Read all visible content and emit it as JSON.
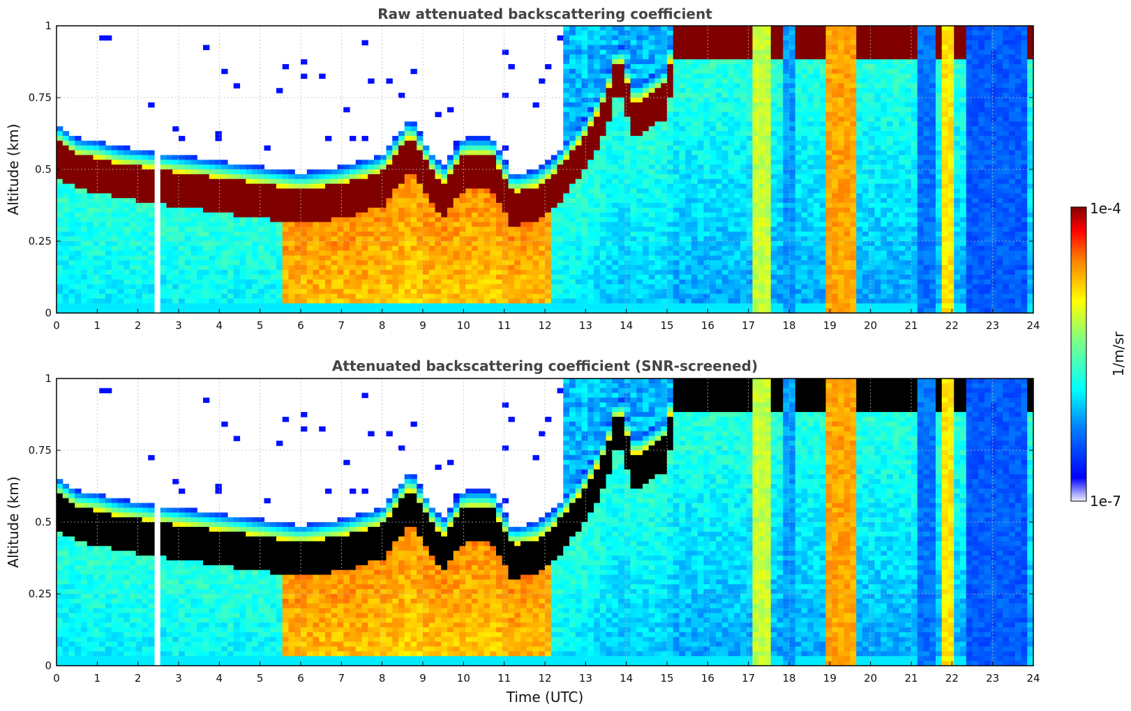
{
  "chart_data": [
    {
      "type": "heatmap",
      "title": "Raw attenuated backscattering coefficient",
      "xlabel": "",
      "ylabel": "Altitude (km)",
      "xlim": [
        0,
        24
      ],
      "ylim": [
        0,
        1
      ],
      "x_ticks": [
        "0",
        "1",
        "2",
        "3",
        "4",
        "5",
        "6",
        "7",
        "8",
        "9",
        "10",
        "11",
        "12",
        "13",
        "14",
        "15",
        "16",
        "17",
        "18",
        "19",
        "20",
        "21",
        "22",
        "23",
        "24"
      ],
      "y_ticks": [
        "0",
        "0.25",
        "0.5",
        "0.75",
        "1"
      ],
      "grid": true,
      "screened": false
    },
    {
      "type": "heatmap",
      "title": "Attenuated backscattering coefficient (SNR-screened)",
      "xlabel": "Time (UTC)",
      "ylabel": "Altitude (km)",
      "xlim": [
        0,
        24
      ],
      "ylim": [
        0,
        1
      ],
      "x_ticks": [
        "0",
        "1",
        "2",
        "3",
        "4",
        "5",
        "6",
        "7",
        "8",
        "9",
        "10",
        "11",
        "12",
        "13",
        "14",
        "15",
        "16",
        "17",
        "18",
        "19",
        "20",
        "21",
        "22",
        "23",
        "24"
      ],
      "y_ticks": [
        "0",
        "0.25",
        "0.5",
        "0.75",
        "1"
      ],
      "grid": true,
      "screened": true
    }
  ],
  "colorbar": {
    "max_label": "1e-4",
    "min_label": "1e-7",
    "unit": "1/m/sr",
    "colormap": "jet",
    "over_color_screened": "#000000"
  },
  "profile": {
    "pbl_top_km": [
      [
        0,
        0.6
      ],
      [
        0.5,
        0.55
      ],
      [
        1,
        0.54
      ],
      [
        1.5,
        0.52
      ],
      [
        2,
        0.51
      ],
      [
        2.5,
        0.5
      ],
      [
        3,
        0.49
      ],
      [
        4,
        0.47
      ],
      [
        5,
        0.45
      ],
      [
        6,
        0.43
      ],
      [
        7,
        0.45
      ],
      [
        8,
        0.49
      ],
      [
        8.7,
        0.62
      ],
      [
        9.2,
        0.5
      ],
      [
        9.5,
        0.45
      ],
      [
        10,
        0.55
      ],
      [
        10.7,
        0.55
      ],
      [
        11.2,
        0.42
      ],
      [
        11.8,
        0.44
      ],
      [
        12.2,
        0.48
      ],
      [
        12.6,
        0.55
      ],
      [
        13,
        0.62
      ],
      [
        13.5,
        0.75
      ],
      [
        13.8,
        0.9
      ],
      [
        14.2,
        0.73
      ],
      [
        15,
        0.8
      ],
      [
        15.2,
        1.0
      ],
      [
        17,
        1.0
      ]
    ],
    "dark_gap_hours": [
      2.45,
      2.55
    ],
    "vertical_streaks": [
      {
        "x0": 17.1,
        "x1": 17.5,
        "level": 0.62
      },
      {
        "x0": 17.9,
        "x1": 18.1,
        "level": 0.3
      },
      {
        "x0": 18.9,
        "x1": 19.6,
        "level": 0.78
      },
      {
        "x0": 21.2,
        "x1": 21.6,
        "level": 0.25
      },
      {
        "x0": 21.8,
        "x1": 22.1,
        "level": 0.7
      },
      {
        "x0": 22.3,
        "x1": 23.8,
        "level": 0.22
      }
    ]
  }
}
